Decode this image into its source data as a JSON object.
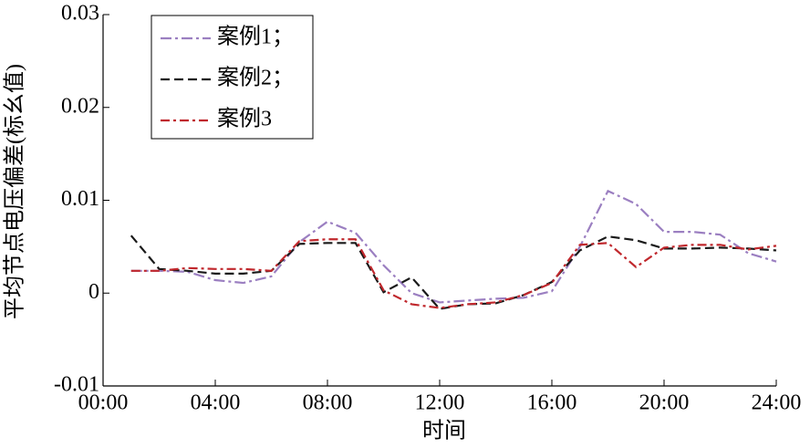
{
  "chart_data": {
    "type": "line",
    "xlabel": "时间",
    "ylabel": "平均节点电压偏差(标幺值)",
    "x": [
      1,
      2,
      3,
      4,
      5,
      6,
      7,
      8,
      9,
      10,
      11,
      12,
      13,
      14,
      15,
      16,
      17,
      18,
      19,
      20,
      21,
      22,
      23,
      24
    ],
    "series": [
      {
        "name": "案例1；",
        "color": "#9b7fc1",
        "values": [
          0.0024,
          0.0024,
          0.0023,
          0.0014,
          0.0011,
          0.0018,
          0.0055,
          0.0077,
          0.0065,
          0.003,
          0.0,
          -0.001,
          -0.0008,
          -0.0006,
          -0.0005,
          0.0002,
          0.005,
          0.011,
          0.0096,
          0.0066,
          0.0066,
          0.0063,
          0.0043,
          0.0034
        ]
      },
      {
        "name": "案例2；",
        "color": "#1a1a1a",
        "values": [
          0.0062,
          0.0026,
          0.0024,
          0.0021,
          0.0021,
          0.0024,
          0.0053,
          0.0054,
          0.0054,
          0.0001,
          0.0017,
          -0.0017,
          -0.0012,
          -0.0011,
          -0.0002,
          0.0012,
          0.0046,
          0.0061,
          0.0057,
          0.0048,
          0.0048,
          0.0049,
          0.0048,
          0.0046
        ]
      },
      {
        "name": "案例3",
        "color": "#c0282d",
        "values": [
          0.0024,
          0.0024,
          0.0027,
          0.0026,
          0.0026,
          0.0024,
          0.0056,
          0.0058,
          0.0058,
          0.0003,
          -0.0012,
          -0.0016,
          -0.0012,
          -0.001,
          -0.0002,
          0.0011,
          0.0052,
          0.0054,
          0.0028,
          0.0049,
          0.0052,
          0.0052,
          0.0047,
          0.0051
        ]
      }
    ],
    "xlim": [
      0,
      24
    ],
    "xticks": [
      {
        "value": 0,
        "label": "00:00"
      },
      {
        "value": 4,
        "label": "04:00"
      },
      {
        "value": 8,
        "label": "08:00"
      },
      {
        "value": 12,
        "label": "12:00"
      },
      {
        "value": 16,
        "label": "16:00"
      },
      {
        "value": 20,
        "label": "20:00"
      },
      {
        "value": 24,
        "label": "24:00"
      }
    ],
    "ylim": [
      -0.01,
      0.03
    ],
    "yticks": [
      -0.01,
      0,
      0.01,
      0.02,
      0.03
    ],
    "legend": "upper left"
  }
}
